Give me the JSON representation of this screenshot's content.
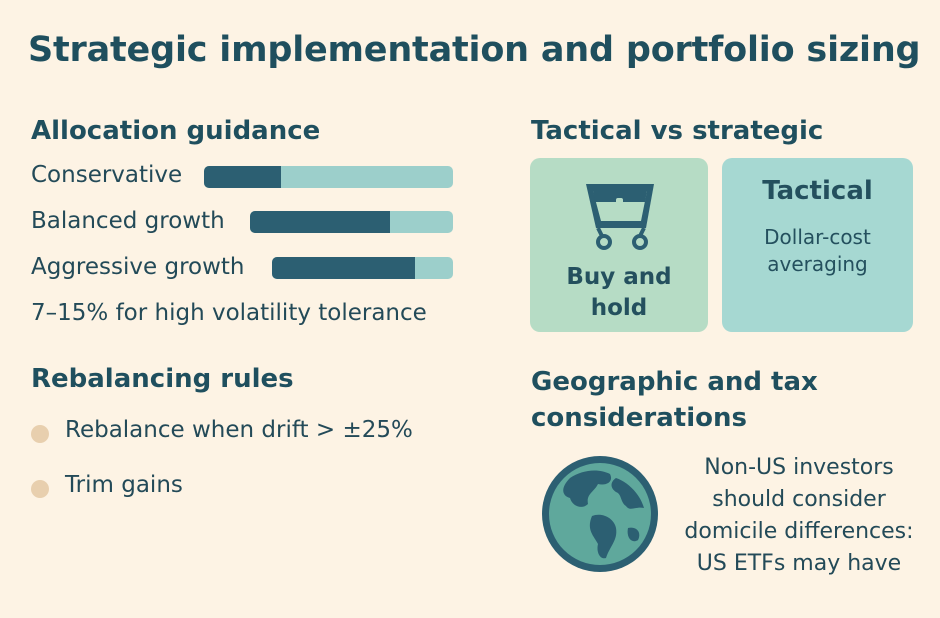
{
  "page": {
    "title": "Strategic implementation and portfolio sizing"
  },
  "allocation": {
    "heading": "Allocation guidance",
    "rows": [
      {
        "label": "Conservative",
        "fill_fraction": 0.31
      },
      {
        "label": "Balanced growth",
        "fill_fraction": 0.69
      },
      {
        "label": "Aggressive growth",
        "fill_fraction": 0.79
      }
    ],
    "note": "7–15% for high volatility tolerance"
  },
  "rebalancing": {
    "heading": "Rebalancing rules",
    "items": [
      "Rebalance when drift > ±25%",
      "Trim gains"
    ]
  },
  "tactical": {
    "heading": "Tactical vs strategic",
    "buy_hold": {
      "line1": "Buy and",
      "line2": "hold",
      "icon": "cart-icon"
    },
    "tactical_card": {
      "title": "Tactical",
      "line1": "Dollar-cost",
      "line2": "averaging"
    }
  },
  "geo": {
    "heading_line1": "Geographic and tax",
    "heading_line2": "considerations",
    "icon": "globe-icon",
    "lines": [
      "Non-US investors",
      "should consider",
      "domicile differences:",
      "US ETFs may have"
    ]
  },
  "colors": {
    "background": "#fdf3e4",
    "bar_dark": "#2c5f72",
    "bar_light": "#9ccfcb",
    "card_green": "#b6dcc5",
    "card_teal": "#a6d8d2",
    "bullet": "#e8cfae"
  }
}
